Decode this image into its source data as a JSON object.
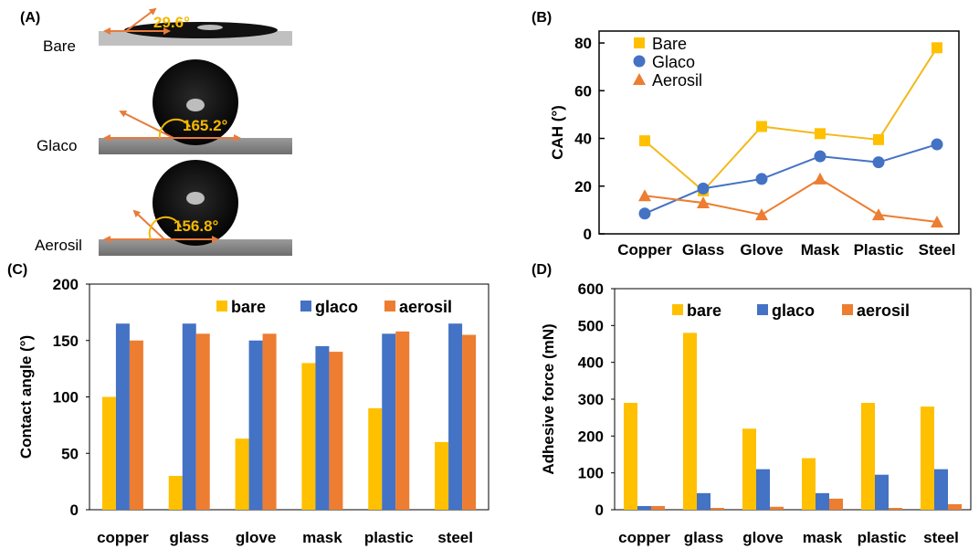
{
  "colors": {
    "bare": "#FFC000",
    "glaco": "#4472C4",
    "aerosil": "#ED7D31",
    "line_bare": "#F4B81A",
    "line_glaco": "#4472C4",
    "line_aerosil": "#ED7D31",
    "angle_text": "#F5B800",
    "arrow": "#E87A3A"
  },
  "panel_a": {
    "letter": "(A)",
    "samples": [
      {
        "label": "Bare",
        "angle": "29.6°"
      },
      {
        "label": "Glaco",
        "angle": "165.2°"
      },
      {
        "label": "Aerosil",
        "angle": "156.8°"
      }
    ]
  },
  "chart_data": [
    {
      "panel": "(B)",
      "type": "line",
      "ylabel": "CAH (°)",
      "ylim": [
        0,
        85
      ],
      "yticks": [
        0,
        20,
        40,
        60,
        80
      ],
      "categories": [
        "Copper",
        "Glass",
        "Glove",
        "Mask",
        "Plastic",
        "Steel"
      ],
      "legend_position": "top-left",
      "series": [
        {
          "name": "Bare",
          "marker": "square",
          "values": [
            39,
            18,
            45,
            42,
            39.5,
            78
          ]
        },
        {
          "name": "Glaco",
          "marker": "circle",
          "values": [
            8.5,
            19,
            23,
            32.5,
            30,
            37.5
          ]
        },
        {
          "name": "Aerosil",
          "marker": "triangle",
          "values": [
            16,
            13,
            8,
            23,
            8,
            5
          ]
        }
      ]
    },
    {
      "panel": "(C)",
      "type": "bar",
      "ylabel": "Contact angle (°)",
      "ylim": [
        0,
        200
      ],
      "yticks": [
        0,
        50,
        100,
        150,
        200
      ],
      "categories": [
        "copper",
        "glass",
        "glove",
        "mask",
        "plastic",
        "steel"
      ],
      "legend_position": "top",
      "series": [
        {
          "name": "bare",
          "values": [
            100,
            30,
            63,
            130,
            90,
            60
          ]
        },
        {
          "name": "glaco",
          "values": [
            165,
            165,
            150,
            145,
            156,
            165
          ]
        },
        {
          "name": "aerosil",
          "values": [
            150,
            156,
            156,
            140,
            158,
            155
          ]
        }
      ]
    },
    {
      "panel": "(D)",
      "type": "bar",
      "ylabel": "Adhesive force (mN)",
      "ylim": [
        0,
        600
      ],
      "yticks": [
        0,
        100,
        200,
        300,
        400,
        500,
        600
      ],
      "categories": [
        "copper",
        "glass",
        "glove",
        "mask",
        "plastic",
        "steel"
      ],
      "legend_position": "top",
      "series": [
        {
          "name": "bare",
          "values": [
            290,
            480,
            220,
            140,
            290,
            280
          ]
        },
        {
          "name": "glaco",
          "values": [
            10,
            45,
            110,
            45,
            95,
            110
          ]
        },
        {
          "name": "aerosil",
          "values": [
            10,
            5,
            8,
            30,
            5,
            15
          ]
        }
      ]
    }
  ]
}
